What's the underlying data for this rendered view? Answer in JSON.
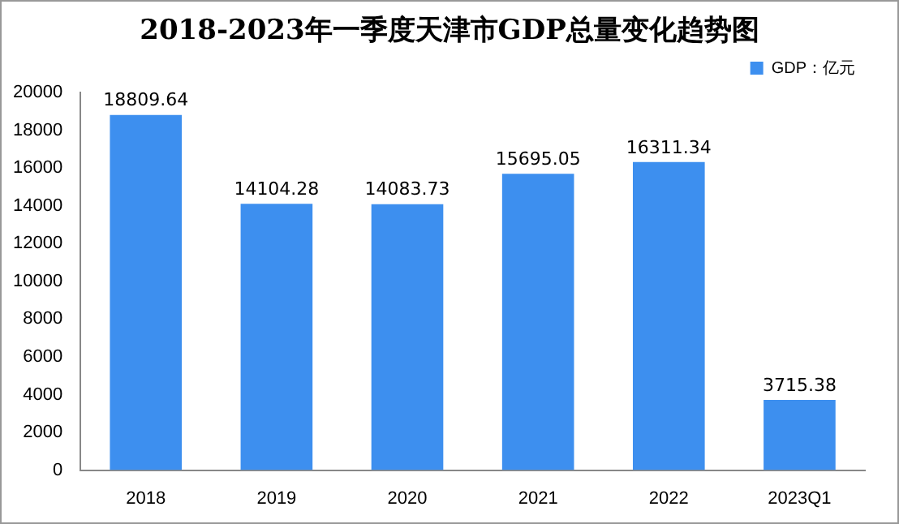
{
  "chart_data": {
    "type": "bar",
    "title": "2018-2023年一季度天津市GDP总量变化趋势图",
    "categories": [
      "2018",
      "2019",
      "2020",
      "2021",
      "2022",
      "2023Q1"
    ],
    "series": [
      {
        "name": "GDP：亿元",
        "color": "#3d8fef",
        "values": [
          18809.64,
          14104.28,
          14083.73,
          15695.05,
          16311.34,
          3715.38
        ]
      }
    ],
    "ylim": [
      0,
      20000
    ],
    "yticks": [
      0,
      2000,
      4000,
      6000,
      8000,
      10000,
      12000,
      14000,
      16000,
      18000,
      20000
    ],
    "grid": false,
    "legend": "top right",
    "data_labels": true
  }
}
